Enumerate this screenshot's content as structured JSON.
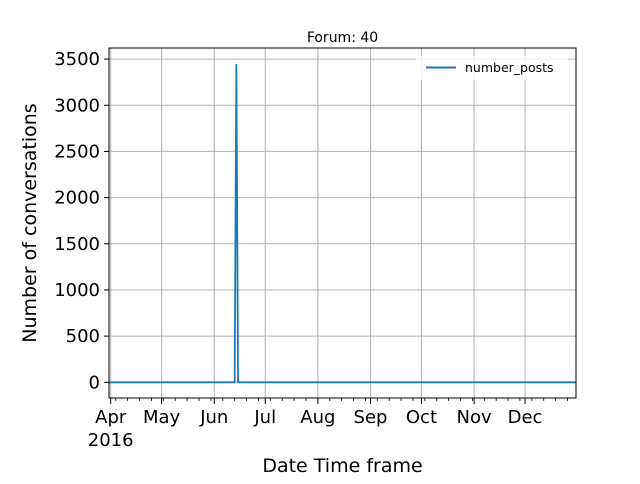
{
  "chart_data": {
    "type": "line",
    "title": "Forum: 40",
    "xlabel": "Date Time frame",
    "ylabel": "Number of conversations",
    "x_axis_kind": "date",
    "xlim": [
      "2016-03-31",
      "2016-12-31"
    ],
    "ylim": [
      -170,
      3620
    ],
    "x_tick_labels": [
      {
        "date": "2016-04-01",
        "label": "Apr",
        "sublabel": "2016"
      },
      {
        "date": "2016-05-01",
        "label": "May"
      },
      {
        "date": "2016-06-01",
        "label": "Jun"
      },
      {
        "date": "2016-07-01",
        "label": "Jul"
      },
      {
        "date": "2016-08-01",
        "label": "Aug"
      },
      {
        "date": "2016-09-01",
        "label": "Sep"
      },
      {
        "date": "2016-10-01",
        "label": "Oct"
      },
      {
        "date": "2016-11-01",
        "label": "Nov"
      },
      {
        "date": "2016-12-01",
        "label": "Dec"
      }
    ],
    "y_ticks": [
      0,
      500,
      1000,
      1500,
      2000,
      2500,
      3000,
      3500
    ],
    "grid": true,
    "legend": {
      "position": "top-right",
      "entries": [
        "number_posts"
      ]
    },
    "series": [
      {
        "name": "number_posts",
        "color": "#1f77b4",
        "points": [
          {
            "x": "2016-03-31",
            "y": 0
          },
          {
            "x": "2016-06-13",
            "y": 0
          },
          {
            "x": "2016-06-14",
            "y": 3440
          },
          {
            "x": "2016-06-15",
            "y": 0
          },
          {
            "x": "2016-12-31",
            "y": 0
          }
        ]
      }
    ]
  }
}
